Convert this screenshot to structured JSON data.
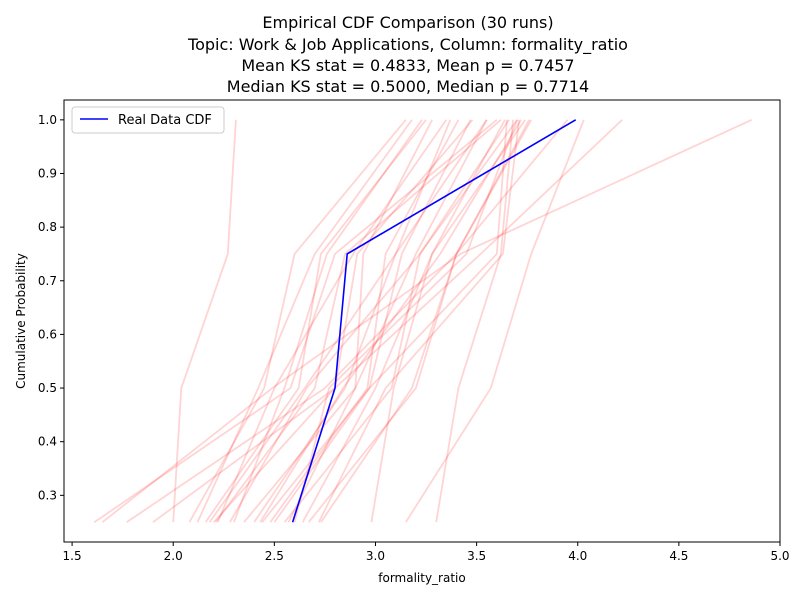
{
  "chart_data": {
    "type": "line",
    "title_lines": [
      "Empirical CDF Comparison (30 runs)",
      "Topic: Work & Job Applications, Column: formality_ratio",
      "Mean KS stat = 0.4833, Mean p = 0.7457",
      "Median KS stat = 0.5000, Median p = 0.7714"
    ],
    "xlabel": "formality_ratio",
    "ylabel": "Cumulative Probability",
    "xlim": [
      1.46,
      5.0
    ],
    "ylim": [
      0.213,
      1.037
    ],
    "xticks": [
      "1.5",
      "2.0",
      "2.5",
      "3.0",
      "3.5",
      "4.0",
      "4.5",
      "5.0"
    ],
    "yticks": [
      "0.3",
      "0.4",
      "0.5",
      "0.6",
      "0.7",
      "0.8",
      "0.9",
      "1.0"
    ],
    "xtick_values": [
      1.5,
      2.0,
      2.5,
      3.0,
      3.5,
      4.0,
      4.5,
      5.0
    ],
    "ytick_values": [
      0.3,
      0.4,
      0.5,
      0.6,
      0.7,
      0.8,
      0.9,
      1.0
    ],
    "grid": false,
    "legend": {
      "position": "top-left",
      "entries": [
        "Real Data CDF"
      ]
    },
    "real_series": {
      "name": "Real Data CDF",
      "color": "#0000ff",
      "x": [
        2.59,
        2.8,
        2.86,
        3.99
      ],
      "y": [
        0.25,
        0.5,
        0.75,
        1.0
      ]
    },
    "synthetic_color": "#ff0000",
    "synthetic_opacity": 0.17,
    "synthetic_series": [
      {
        "x": [
          2.0,
          2.04,
          2.27,
          2.31
        ],
        "y": [
          0.25,
          0.5,
          0.75,
          1.0
        ]
      },
      {
        "x": [
          1.61,
          2.58,
          2.8,
          3.6
        ],
        "y": [
          0.25,
          0.5,
          0.75,
          1.0
        ]
      },
      {
        "x": [
          1.65,
          2.49,
          3.42,
          4.86
        ],
        "y": [
          0.25,
          0.5,
          0.75,
          1.0
        ]
      },
      {
        "x": [
          1.77,
          2.75,
          3.4,
          3.95
        ],
        "y": [
          0.25,
          0.5,
          0.75,
          1.0
        ]
      },
      {
        "x": [
          1.9,
          2.8,
          3.52,
          4.22
        ],
        "y": [
          0.25,
          0.5,
          0.75,
          1.0
        ]
      },
      {
        "x": [
          2.08,
          2.45,
          2.6,
          3.15
        ],
        "y": [
          0.25,
          0.5,
          0.75,
          1.0
        ]
      },
      {
        "x": [
          2.16,
          2.62,
          2.73,
          3.25
        ],
        "y": [
          0.25,
          0.5,
          0.75,
          1.0
        ]
      },
      {
        "x": [
          2.18,
          2.65,
          3.1,
          3.55
        ],
        "y": [
          0.25,
          0.5,
          0.75,
          1.0
        ]
      },
      {
        "x": [
          2.21,
          2.7,
          2.85,
          3.62
        ],
        "y": [
          0.25,
          0.5,
          0.75,
          1.0
        ]
      },
      {
        "x": [
          2.3,
          2.55,
          2.76,
          3.23
        ],
        "y": [
          0.25,
          0.5,
          0.75,
          1.0
        ]
      },
      {
        "x": [
          2.35,
          2.9,
          3.2,
          3.55
        ],
        "y": [
          0.25,
          0.5,
          0.75,
          1.0
        ]
      },
      {
        "x": [
          2.43,
          2.84,
          3.32,
          3.72
        ],
        "y": [
          0.25,
          0.5,
          0.75,
          1.0
        ]
      },
      {
        "x": [
          2.48,
          2.96,
          3.05,
          3.41
        ],
        "y": [
          0.25,
          0.5,
          0.75,
          1.0
        ]
      },
      {
        "x": [
          2.5,
          2.97,
          3.6,
          3.65
        ],
        "y": [
          0.25,
          0.5,
          0.75,
          1.0
        ]
      },
      {
        "x": [
          2.55,
          3.08,
          3.22,
          3.7
        ],
        "y": [
          0.25,
          0.5,
          0.75,
          1.0
        ]
      },
      {
        "x": [
          2.6,
          2.77,
          3.45,
          3.7
        ],
        "y": [
          0.25,
          0.5,
          0.75,
          1.0
        ]
      },
      {
        "x": [
          2.67,
          3.2,
          3.4,
          3.77
        ],
        "y": [
          0.25,
          0.5,
          0.75,
          1.0
        ]
      },
      {
        "x": [
          2.72,
          3.05,
          3.63,
          3.71
        ],
        "y": [
          0.25,
          0.5,
          0.75,
          1.0
        ]
      },
      {
        "x": [
          2.98,
          3.09,
          3.28,
          3.64
        ],
        "y": [
          0.25,
          0.5,
          0.75,
          1.0
        ]
      },
      {
        "x": [
          3.15,
          3.57,
          3.77,
          4.03
        ],
        "y": [
          0.25,
          0.5,
          0.75,
          1.0
        ]
      },
      {
        "x": [
          3.3,
          3.41,
          3.62,
          3.68
        ],
        "y": [
          0.25,
          0.5,
          0.75,
          1.0
        ]
      },
      {
        "x": [
          2.2,
          2.8,
          2.91,
          3.48
        ],
        "y": [
          0.25,
          0.5,
          0.75,
          1.0
        ]
      },
      {
        "x": [
          2.4,
          2.85,
          3.1,
          3.37
        ],
        "y": [
          0.25,
          0.5,
          0.75,
          1.0
        ]
      },
      {
        "x": [
          2.44,
          2.97,
          3.13,
          3.47
        ],
        "y": [
          0.25,
          0.5,
          0.75,
          1.0
        ]
      },
      {
        "x": [
          2.57,
          2.9,
          2.94,
          3.28
        ],
        "y": [
          0.25,
          0.5,
          0.75,
          1.0
        ]
      },
      {
        "x": [
          2.64,
          3.0,
          3.28,
          3.74
        ],
        "y": [
          0.25,
          0.5,
          0.75,
          1.0
        ]
      },
      {
        "x": [
          2.73,
          3.18,
          3.4,
          3.76
        ],
        "y": [
          0.25,
          0.5,
          0.75,
          1.0
        ]
      },
      {
        "x": [
          2.12,
          2.42,
          2.7,
          3.18
        ],
        "y": [
          0.25,
          0.5,
          0.75,
          1.0
        ]
      },
      {
        "x": [
          2.22,
          2.5,
          2.89,
          3.35
        ],
        "y": [
          0.25,
          0.5,
          0.75,
          1.0
        ]
      },
      {
        "x": [
          2.28,
          2.66,
          3.22,
          3.66
        ],
        "y": [
          0.25,
          0.5,
          0.75,
          1.0
        ]
      }
    ]
  }
}
